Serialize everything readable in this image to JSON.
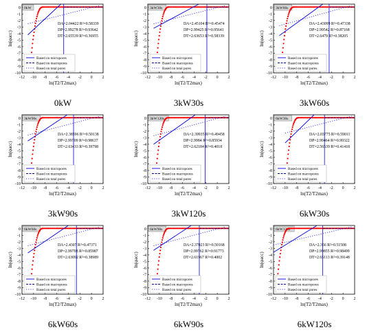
{
  "chart_data": [
    {
      "type": "line",
      "caption": "0kW",
      "tag": "0kW",
      "xlabel": "ln(T2/T2max)",
      "ylabel": "ln(φacc)",
      "xlim": [
        -12,
        2
      ],
      "ylim": [
        -10,
        0.5
      ],
      "xticks": [
        -12,
        -10,
        -8,
        -6,
        -4,
        -2,
        0,
        2
      ],
      "yticks": [
        -10,
        -9,
        -8,
        -7,
        -6,
        -5,
        -4,
        -3,
        -2,
        -1,
        0
      ],
      "annotations": [
        "DA=2.04422 R²=0.58339",
        "DP=2.99278 R²=0.93642",
        "DT=2.65539 R²=0.36955"
      ],
      "legend": [
        "Based on micropores",
        "Based on macropores",
        "Based on total pores"
      ],
      "vline_x": -4.8,
      "rise_x": -10.6,
      "micro_line": [
        [
          -11,
          -4.2
        ],
        [
          -5.3,
          0.5
        ]
      ],
      "total_line": [
        [
          -11,
          -2.5
        ],
        [
          1.5,
          0.3
        ]
      ]
    },
    {
      "type": "line",
      "caption": "3kW30s",
      "tag": "3kW30s",
      "xlabel": "ln(T2/T2max)",
      "ylabel": "ln(φacc)",
      "xlim": [
        -12,
        2
      ],
      "ylim": [
        -10,
        0.5
      ],
      "xticks": [
        -12,
        -10,
        -8,
        -6,
        -4,
        -2,
        0,
        2
      ],
      "yticks": [
        -10,
        -9,
        -8,
        -7,
        -6,
        -5,
        -4,
        -3,
        -2,
        -1,
        0
      ],
      "annotations": [
        "DA=2.45104 R²=0.45474",
        "DP=2.99425 R²=0.95641",
        "DT=2.63653 R²=0.58339"
      ],
      "legend": [
        "Based on micropores",
        "Based on macropores",
        "Based on total pores"
      ],
      "vline_x": -1.8,
      "rise_x": -10.6,
      "micro_line": [
        [
          -11,
          -3.2
        ],
        [
          -3.2,
          0.5
        ]
      ],
      "total_line": [
        [
          -11,
          -2.5
        ],
        [
          1.5,
          0.3
        ]
      ]
    },
    {
      "type": "line",
      "caption": "3kW60s",
      "tag": "3kW60s",
      "xlabel": "ln(T2/T2max)",
      "ylabel": "ln(φacc)",
      "xlim": [
        -12,
        2
      ],
      "ylim": [
        -10,
        0.5
      ],
      "xticks": [
        -12,
        -10,
        -8,
        -6,
        -4,
        -2,
        0,
        2
      ],
      "yticks": [
        -10,
        -9,
        -8,
        -7,
        -6,
        -5,
        -4,
        -3,
        -2,
        -1,
        0
      ],
      "annotations": [
        "DA=2.43099 R²=0.47338",
        "DP=2.99542 R²=0.87168",
        "DT=2.6479 R²=0.38205"
      ],
      "legend": [
        "Based on micropores",
        "Based on macropores",
        "Based on total pores"
      ],
      "vline_x": -2.4,
      "rise_x": -10.7,
      "micro_line": [
        [
          -11,
          -4.3
        ],
        [
          -3.5,
          0.5
        ]
      ],
      "total_line": [
        [
          -11,
          -2.8
        ],
        [
          1.5,
          0.3
        ]
      ]
    },
    {
      "type": "line",
      "caption": "3kW90s",
      "tag": "3kW90s",
      "xlabel": "ln(T2/T2max)",
      "ylabel": "ln(φacc)",
      "xlim": [
        -12,
        2
      ],
      "ylim": [
        -10,
        0.5
      ],
      "xticks": [
        -12,
        -10,
        -8,
        -6,
        -4,
        -2,
        0,
        2
      ],
      "yticks": [
        -10,
        -9,
        -8,
        -7,
        -6,
        -5,
        -4,
        -3,
        -2,
        -1,
        0
      ],
      "annotations": [
        "DA=2.38596 R²=0.50138",
        "DP=2.99709 R²=0.98637",
        "DT=2.63433 R²=0.39798"
      ],
      "legend": [
        "Based on micropores",
        "Based on macropores",
        "Based on total pores"
      ],
      "vline_x": -3.1,
      "rise_x": -10.6,
      "micro_line": [
        [
          -11,
          -3.5
        ],
        [
          -4.2,
          0.5
        ]
      ],
      "total_line": [
        [
          -11,
          -2.6
        ],
        [
          1.5,
          0.3
        ]
      ]
    },
    {
      "type": "line",
      "caption": "3kW120s",
      "tag": "3kW120s",
      "xlabel": "ln(T2/T2max)",
      "ylabel": "ln(φacc)",
      "xlim": [
        -12,
        2
      ],
      "ylim": [
        -10,
        0.5
      ],
      "xticks": [
        -12,
        -10,
        -8,
        -6,
        -4,
        -2,
        0,
        2
      ],
      "yticks": [
        -10,
        -9,
        -8,
        -7,
        -6,
        -5,
        -4,
        -3,
        -2,
        -1,
        0
      ],
      "annotations": [
        "DA=2.39935 R²=0.49458",
        "DP=2.9984 R²=0.85934",
        "DT=2.62184 R²=0.4018"
      ],
      "legend": [
        "Based on micropores",
        "Based on macropores",
        "Based on total pores"
      ],
      "vline_x": -2.1,
      "rise_x": -10.7,
      "micro_line": [
        [
          -11,
          -4.0
        ],
        [
          -3.8,
          0.5
        ]
      ],
      "total_line": [
        [
          -11,
          -2.7
        ],
        [
          1.5,
          0.3
        ]
      ]
    },
    {
      "type": "line",
      "caption": "6kW30s",
      "tag": "6kW30s",
      "xlabel": "ln(T2/T2max)",
      "ylabel": "ln(φacc)",
      "xlim": [
        -12,
        2
      ],
      "ylim": [
        -10,
        0.5
      ],
      "xticks": [
        -12,
        -10,
        -8,
        -6,
        -4,
        -2,
        0,
        2
      ],
      "yticks": [
        -10,
        -9,
        -8,
        -7,
        -6,
        -5,
        -4,
        -3,
        -2,
        -1,
        0
      ],
      "annotations": [
        "DA=2.03775 R²=0.59011",
        "DP=2.99464 R²=0.99322",
        "DT=2.56539 R²=0.41418"
      ],
      "legend": [
        "Based on micropores",
        "Based on macropores",
        "Based on total pores"
      ],
      "vline_x": -3.2,
      "rise_x": -9.9,
      "micro_line": [
        [
          -10,
          -3.8
        ],
        [
          -5.0,
          0.5
        ]
      ],
      "total_line": [
        [
          -10,
          -2.3
        ],
        [
          1.5,
          0.3
        ]
      ]
    },
    {
      "type": "line",
      "caption": "6kW60s",
      "tag": "6kW60s",
      "xlabel": "ln(T2/T2max)",
      "ylabel": "ln(φacc)",
      "xlim": [
        -12,
        2
      ],
      "ylim": [
        -10,
        0.5
      ],
      "xticks": [
        -12,
        -10,
        -8,
        -6,
        -4,
        -2,
        0,
        2
      ],
      "yticks": [
        -10,
        -9,
        -8,
        -7,
        -6,
        -5,
        -4,
        -3,
        -2,
        -1,
        0
      ],
      "annotations": [
        "DA=2.4307 R²=0.47371",
        "DP=2.99708 R²=0.85987",
        "DT=2.63092 R²=0.38989"
      ],
      "legend": [
        "Based on micropores",
        "Based on macropores",
        "Based on total pores"
      ],
      "vline_x": -2.6,
      "rise_x": -10.6,
      "micro_line": [
        [
          -11,
          -3.7
        ],
        [
          -4.0,
          0.5
        ]
      ],
      "total_line": [
        [
          -11,
          -2.6
        ],
        [
          1.5,
          0.3
        ]
      ]
    },
    {
      "type": "line",
      "caption": "6kW90s",
      "tag": "6kW90s",
      "xlabel": "ln(T2/T2max)",
      "ylabel": "ln(φacc)",
      "xlim": [
        -12,
        2
      ],
      "ylim": [
        -10,
        0.5
      ],
      "xticks": [
        -12,
        -10,
        -8,
        -6,
        -4,
        -2,
        0,
        2
      ],
      "yticks": [
        -10,
        -9,
        -8,
        -7,
        -6,
        -5,
        -4,
        -3,
        -2,
        -1,
        0
      ],
      "annotations": [
        "DA=2.37023 R²=0.50168",
        "DP=2.99762 R²=0.91773",
        "DT=2.61967 R²=0.4002"
      ],
      "legend": [
        "Based on micropores",
        "Based on macropores",
        "Based on total pores"
      ],
      "vline_x": -3.1,
      "rise_x": -10.6,
      "micro_line": [
        [
          -11,
          -3.3
        ],
        [
          -4.5,
          0.5
        ]
      ],
      "total_line": [
        [
          -11,
          -2.6
        ],
        [
          1.5,
          0.3
        ]
      ]
    },
    {
      "type": "line",
      "caption": "6kW120s",
      "tag": "6kW120s",
      "xlabel": "ln(T2/T2max)",
      "ylabel": "ln(φacc)",
      "xlim": [
        -12,
        2
      ],
      "ylim": [
        -10,
        0.5
      ],
      "xticks": [
        -12,
        -10,
        -8,
        -6,
        -4,
        -2,
        0,
        2
      ],
      "yticks": [
        -10,
        -9,
        -8,
        -7,
        -6,
        -5,
        -4,
        -3,
        -2,
        -1,
        0
      ],
      "annotations": [
        "DA=2.356 R²=0.51508",
        "DP=2.99855 R²=0.98499",
        "DT=2.65113 R²=0.39148"
      ],
      "legend": [
        "Based on micropores",
        "Based on macropores",
        "Based on total pores"
      ],
      "vline_x": -3.5,
      "rise_x": -11.5,
      "micro_line": [
        [
          -12,
          -3.6
        ],
        [
          -4.5,
          0.5
        ]
      ],
      "total_line": [
        [
          -12,
          -2.5
        ],
        [
          1.5,
          0.3
        ]
      ]
    }
  ],
  "colors": {
    "points": "#ff0000",
    "micro": "#0000dd",
    "macro": "#00008b",
    "total": "#4444ee",
    "axis": "#000000"
  }
}
